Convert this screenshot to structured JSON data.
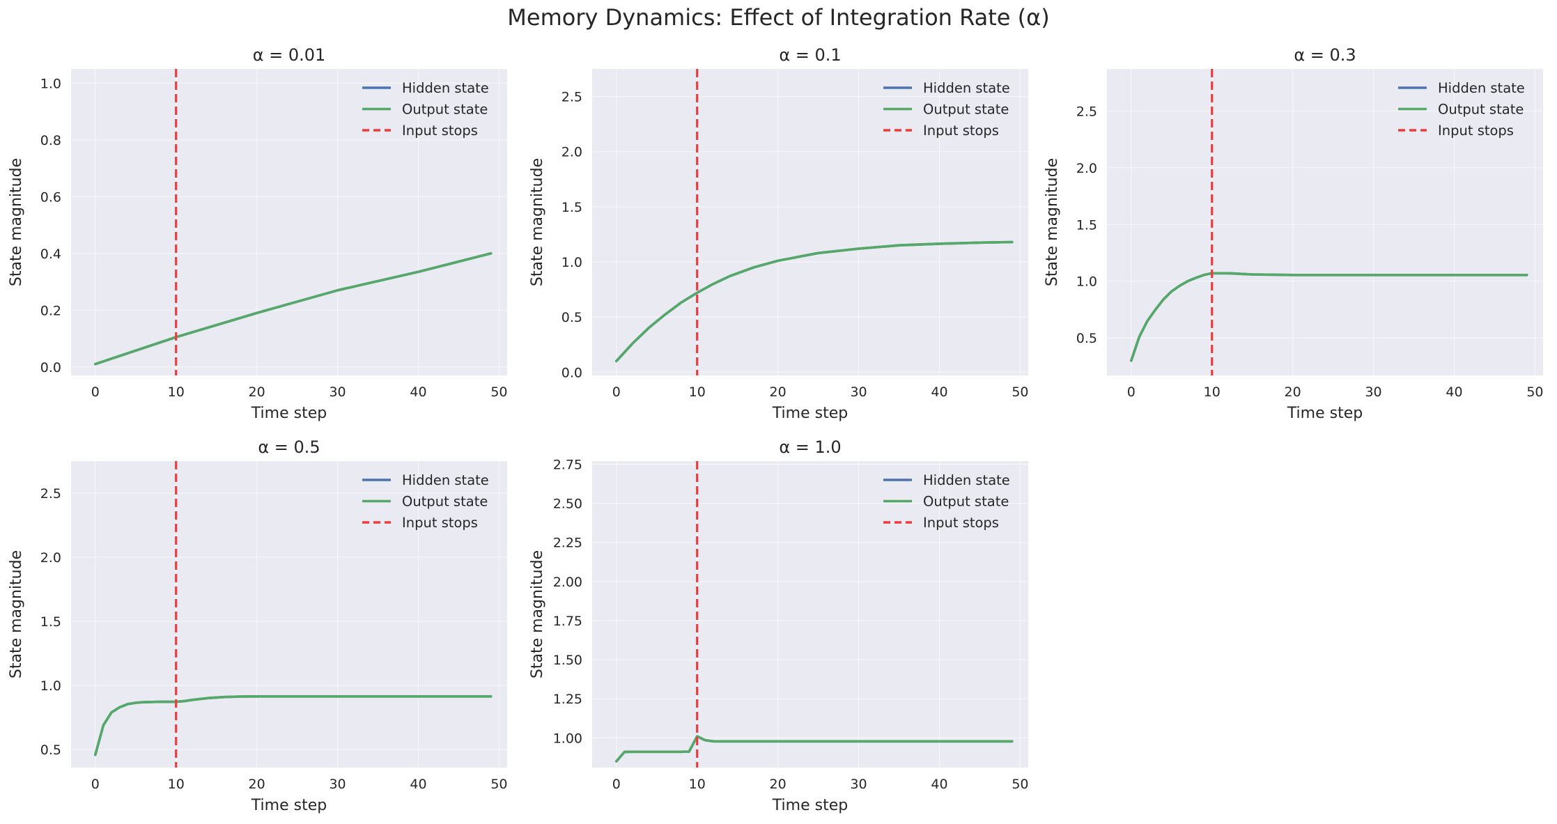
{
  "figure": {
    "title": "Memory Dynamics: Effect of Integration Rate (α)"
  },
  "colors": {
    "panel_bg": "#EAEAF2",
    "grid": "#FFFFFF",
    "hidden_state": "#4C72B0",
    "output_state": "#55A868",
    "input_stops": "#EE3B3B",
    "text": "#262626"
  },
  "chart_data": [
    {
      "type": "line",
      "title": "α = 0.01",
      "xlabel": "Time step",
      "ylabel": "State magnitude",
      "xlim": [
        -3,
        51
      ],
      "ylim": [
        -0.03,
        1.05
      ],
      "xticks": [
        0,
        10,
        20,
        30,
        40,
        50
      ],
      "yticks": [
        0.0,
        0.2,
        0.4,
        0.6,
        0.8,
        1.0
      ],
      "ytick_labels": [
        "0.0",
        "0.2",
        "0.4",
        "0.6",
        "0.8",
        "1.0"
      ],
      "grid": true,
      "legend": "top-right",
      "vline": {
        "x": 10,
        "name": "Input stops"
      },
      "series": [
        {
          "name": "Hidden state",
          "x": [
            0,
            10,
            20,
            30,
            40,
            49
          ],
          "y": [
            0.01,
            0.105,
            0.19,
            0.27,
            0.335,
            0.4
          ]
        },
        {
          "name": "Output state",
          "x": [
            0,
            10,
            20,
            30,
            40,
            49
          ],
          "y": [
            0.01,
            0.105,
            0.19,
            0.27,
            0.335,
            0.4
          ]
        }
      ]
    },
    {
      "type": "line",
      "title": "α = 0.1",
      "xlabel": "Time step",
      "ylabel": "State magnitude",
      "xlim": [
        -3,
        51
      ],
      "ylim": [
        -0.03,
        2.75
      ],
      "xticks": [
        0,
        10,
        20,
        30,
        40,
        50
      ],
      "yticks": [
        0.0,
        0.5,
        1.0,
        1.5,
        2.0,
        2.5
      ],
      "ytick_labels": [
        "0.0",
        "0.5",
        "1.0",
        "1.5",
        "2.0",
        "2.5"
      ],
      "grid": true,
      "legend": "top-right",
      "vline": {
        "x": 10,
        "name": "Input stops"
      },
      "series": [
        {
          "name": "Hidden state",
          "x": [
            0,
            2,
            4,
            6,
            8,
            10,
            12,
            14,
            17,
            20,
            25,
            30,
            35,
            40,
            45,
            49
          ],
          "y": [
            0.1,
            0.26,
            0.4,
            0.52,
            0.63,
            0.72,
            0.8,
            0.87,
            0.95,
            1.01,
            1.08,
            1.12,
            1.15,
            1.165,
            1.175,
            1.18
          ]
        },
        {
          "name": "Output state",
          "x": [
            0,
            2,
            4,
            6,
            8,
            10,
            12,
            14,
            17,
            20,
            25,
            30,
            35,
            40,
            45,
            49
          ],
          "y": [
            0.1,
            0.26,
            0.4,
            0.52,
            0.63,
            0.72,
            0.8,
            0.87,
            0.95,
            1.01,
            1.08,
            1.12,
            1.15,
            1.165,
            1.175,
            1.18
          ]
        }
      ]
    },
    {
      "type": "line",
      "title": "α = 0.3",
      "xlabel": "Time step",
      "ylabel": "State magnitude",
      "xlim": [
        -3,
        51
      ],
      "ylim": [
        0.17,
        2.87
      ],
      "xticks": [
        0,
        10,
        20,
        30,
        40,
        50
      ],
      "yticks": [
        0.5,
        1.0,
        1.5,
        2.0,
        2.5
      ],
      "ytick_labels": [
        "0.5",
        "1.0",
        "1.5",
        "2.0",
        "2.5"
      ],
      "grid": true,
      "legend": "top-right",
      "vline": {
        "x": 10,
        "name": "Input stops"
      },
      "series": [
        {
          "name": "Hidden state",
          "x": [
            0,
            1,
            2,
            3,
            4,
            5,
            6,
            7,
            8,
            9,
            10,
            12,
            15,
            20,
            30,
            40,
            49
          ],
          "y": [
            0.3,
            0.51,
            0.65,
            0.75,
            0.84,
            0.91,
            0.96,
            1.0,
            1.03,
            1.055,
            1.07,
            1.07,
            1.06,
            1.055,
            1.055,
            1.055,
            1.055
          ]
        },
        {
          "name": "Output state",
          "x": [
            0,
            1,
            2,
            3,
            4,
            5,
            6,
            7,
            8,
            9,
            10,
            12,
            15,
            20,
            30,
            40,
            49
          ],
          "y": [
            0.3,
            0.51,
            0.65,
            0.75,
            0.84,
            0.91,
            0.96,
            1.0,
            1.03,
            1.055,
            1.07,
            1.07,
            1.06,
            1.055,
            1.055,
            1.055,
            1.055
          ]
        }
      ]
    },
    {
      "type": "line",
      "title": "α = 0.5",
      "xlabel": "Time step",
      "ylabel": "State magnitude",
      "xlim": [
        -3,
        51
      ],
      "ylim": [
        0.36,
        2.75
      ],
      "xticks": [
        0,
        10,
        20,
        30,
        40,
        50
      ],
      "yticks": [
        0.5,
        1.0,
        1.5,
        2.0,
        2.5
      ],
      "ytick_labels": [
        "0.5",
        "1.0",
        "1.5",
        "2.0",
        "2.5"
      ],
      "grid": true,
      "legend": "top-right",
      "vline": {
        "x": 10,
        "name": "Input stops"
      },
      "series": [
        {
          "name": "Hidden state",
          "x": [
            0,
            1,
            2,
            3,
            4,
            5,
            6,
            8,
            10,
            11,
            12,
            14,
            16,
            18,
            20,
            25,
            30,
            40,
            49
          ],
          "y": [
            0.46,
            0.69,
            0.79,
            0.83,
            0.855,
            0.865,
            0.87,
            0.873,
            0.873,
            0.878,
            0.888,
            0.902,
            0.91,
            0.914,
            0.915,
            0.915,
            0.915,
            0.915,
            0.915
          ]
        },
        {
          "name": "Output state",
          "x": [
            0,
            1,
            2,
            3,
            4,
            5,
            6,
            8,
            10,
            11,
            12,
            14,
            16,
            18,
            20,
            25,
            30,
            40,
            49
          ],
          "y": [
            0.46,
            0.69,
            0.79,
            0.83,
            0.855,
            0.865,
            0.87,
            0.873,
            0.873,
            0.878,
            0.888,
            0.902,
            0.91,
            0.914,
            0.915,
            0.915,
            0.915,
            0.915,
            0.915
          ]
        }
      ]
    },
    {
      "type": "line",
      "title": "α = 1.0",
      "xlabel": "Time step",
      "ylabel": "State magnitude",
      "xlim": [
        -3,
        51
      ],
      "ylim": [
        0.81,
        2.77
      ],
      "xticks": [
        0,
        10,
        20,
        30,
        40,
        50
      ],
      "yticks": [
        1.0,
        1.25,
        1.5,
        1.75,
        2.0,
        2.25,
        2.5,
        2.75
      ],
      "ytick_labels": [
        "1.00",
        "1.25",
        "1.50",
        "1.75",
        "2.00",
        "2.25",
        "2.50",
        "2.75"
      ],
      "grid": true,
      "legend": "top-right",
      "vline": {
        "x": 10,
        "name": "Input stops"
      },
      "series": [
        {
          "name": "Hidden state",
          "x": [
            0,
            1,
            2,
            4,
            6,
            8,
            9,
            10,
            11,
            12,
            14,
            20,
            30,
            40,
            49
          ],
          "y": [
            0.85,
            0.91,
            0.911,
            0.911,
            0.911,
            0.911,
            0.912,
            1.01,
            0.985,
            0.978,
            0.978,
            0.978,
            0.978,
            0.978,
            0.978
          ]
        },
        {
          "name": "Output state",
          "x": [
            0,
            1,
            2,
            4,
            6,
            8,
            9,
            10,
            11,
            12,
            14,
            20,
            30,
            40,
            49
          ],
          "y": [
            0.85,
            0.91,
            0.911,
            0.911,
            0.911,
            0.911,
            0.912,
            1.01,
            0.985,
            0.978,
            0.978,
            0.978,
            0.978,
            0.978,
            0.978
          ]
        }
      ]
    }
  ]
}
